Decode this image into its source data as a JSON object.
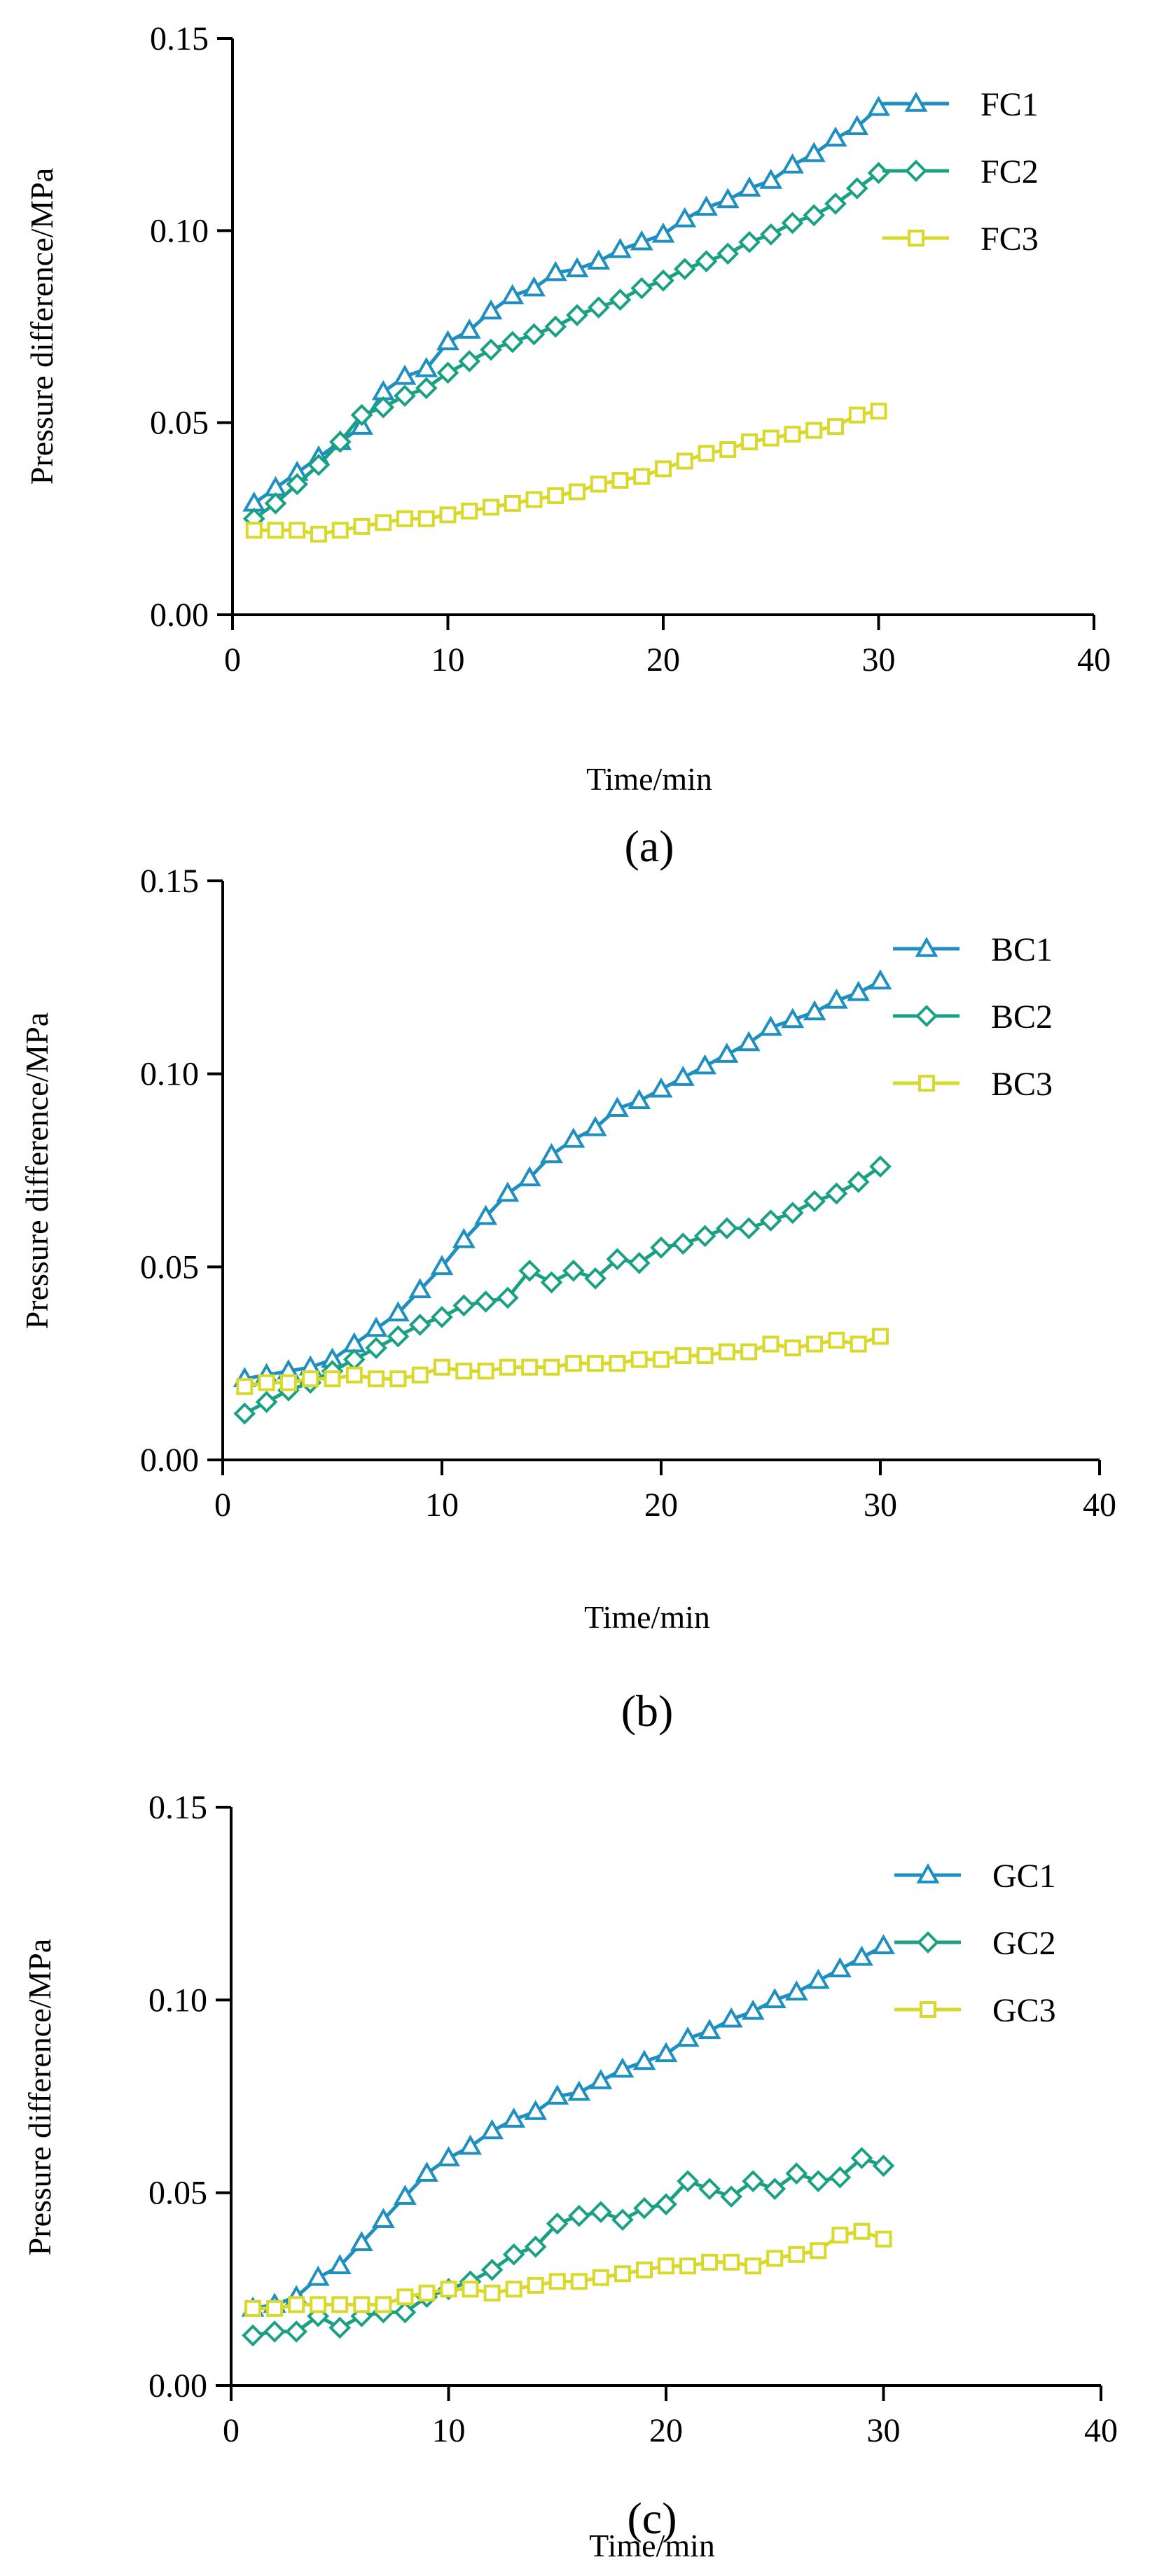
{
  "colors": {
    "series1": "#1f8fc0",
    "series2": "#1aa083",
    "series3": "#d9d92a"
  },
  "chart_data": [
    {
      "type": "line",
      "panel_label": "(a)",
      "xlabel": "Time/min",
      "ylabel": "Pressure difference/MPa",
      "xlim": [
        0,
        40
      ],
      "ylim": [
        0,
        0.15
      ],
      "xticks": [
        0,
        10,
        20,
        30,
        40
      ],
      "xtick_labels": [
        "0",
        "10",
        "20",
        "30",
        "40"
      ],
      "yticks": [
        0,
        0.05,
        0.1,
        0.15
      ],
      "ytick_labels": [
        "0.00",
        "0.05",
        "0.10",
        "0.15"
      ],
      "legend_position": "top-right",
      "series": [
        {
          "name": "FC1",
          "marker": "triangle",
          "color_key": "series1",
          "x": [
            1,
            2,
            3,
            4,
            5,
            6,
            7,
            8,
            9,
            10,
            11,
            12,
            13,
            14,
            15,
            16,
            17,
            18,
            19,
            20,
            21,
            22,
            23,
            24,
            25,
            26,
            27,
            28,
            29,
            30
          ],
          "values": [
            0.029,
            0.033,
            0.037,
            0.041,
            0.045,
            0.049,
            0.058,
            0.062,
            0.064,
            0.071,
            0.074,
            0.079,
            0.083,
            0.085,
            0.089,
            0.09,
            0.092,
            0.095,
            0.097,
            0.099,
            0.103,
            0.106,
            0.108,
            0.111,
            0.113,
            0.117,
            0.12,
            0.124,
            0.127,
            0.132
          ]
        },
        {
          "name": "FC2",
          "marker": "diamond",
          "color_key": "series2",
          "x": [
            1,
            2,
            3,
            4,
            5,
            6,
            7,
            8,
            9,
            10,
            11,
            12,
            13,
            14,
            15,
            16,
            17,
            18,
            19,
            20,
            21,
            22,
            23,
            24,
            25,
            26,
            27,
            28,
            29,
            30
          ],
          "values": [
            0.025,
            0.029,
            0.034,
            0.039,
            0.045,
            0.052,
            0.054,
            0.057,
            0.059,
            0.063,
            0.066,
            0.069,
            0.071,
            0.073,
            0.075,
            0.078,
            0.08,
            0.082,
            0.085,
            0.087,
            0.09,
            0.092,
            0.094,
            0.097,
            0.099,
            0.102,
            0.104,
            0.107,
            0.111,
            0.115
          ]
        },
        {
          "name": "FC3",
          "marker": "square",
          "color_key": "series3",
          "x": [
            1,
            2,
            3,
            4,
            5,
            6,
            7,
            8,
            9,
            10,
            11,
            12,
            13,
            14,
            15,
            16,
            17,
            18,
            19,
            20,
            21,
            22,
            23,
            24,
            25,
            26,
            27,
            28,
            29,
            30
          ],
          "values": [
            0.022,
            0.022,
            0.022,
            0.021,
            0.022,
            0.023,
            0.024,
            0.025,
            0.025,
            0.026,
            0.027,
            0.028,
            0.029,
            0.03,
            0.031,
            0.032,
            0.034,
            0.035,
            0.036,
            0.038,
            0.04,
            0.042,
            0.043,
            0.045,
            0.046,
            0.047,
            0.048,
            0.049,
            0.052,
            0.053
          ]
        }
      ]
    },
    {
      "type": "line",
      "panel_label": "(b)",
      "xlabel": "Time/min",
      "ylabel": "Pressure difference/MPa",
      "xlim": [
        0,
        40
      ],
      "ylim": [
        0,
        0.15
      ],
      "xticks": [
        0,
        10,
        20,
        30,
        40
      ],
      "xtick_labels": [
        "0",
        "10",
        "20",
        "30",
        "40"
      ],
      "yticks": [
        0,
        0.05,
        0.1,
        0.15
      ],
      "ytick_labels": [
        "0.00",
        "0.05",
        "0.10",
        "0.15"
      ],
      "legend_position": "top-right",
      "series": [
        {
          "name": "BC1",
          "marker": "triangle",
          "color_key": "series1",
          "x": [
            1,
            2,
            3,
            4,
            5,
            6,
            7,
            8,
            9,
            10,
            11,
            12,
            13,
            14,
            15,
            16,
            17,
            18,
            19,
            20,
            21,
            22,
            23,
            24,
            25,
            26,
            27,
            28,
            29,
            30
          ],
          "values": [
            0.021,
            0.022,
            0.023,
            0.024,
            0.026,
            0.03,
            0.034,
            0.038,
            0.044,
            0.05,
            0.057,
            0.063,
            0.069,
            0.073,
            0.079,
            0.083,
            0.086,
            0.091,
            0.093,
            0.096,
            0.099,
            0.102,
            0.105,
            0.108,
            0.112,
            0.114,
            0.116,
            0.119,
            0.121,
            0.124
          ]
        },
        {
          "name": "BC2",
          "marker": "diamond",
          "color_key": "series2",
          "x": [
            1,
            2,
            3,
            4,
            5,
            6,
            7,
            8,
            9,
            10,
            11,
            12,
            13,
            14,
            15,
            16,
            17,
            18,
            19,
            20,
            21,
            22,
            23,
            24,
            25,
            26,
            27,
            28,
            29,
            30
          ],
          "values": [
            0.012,
            0.015,
            0.018,
            0.02,
            0.023,
            0.026,
            0.029,
            0.032,
            0.035,
            0.037,
            0.04,
            0.041,
            0.042,
            0.049,
            0.046,
            0.049,
            0.047,
            0.052,
            0.051,
            0.055,
            0.056,
            0.058,
            0.06,
            0.06,
            0.062,
            0.064,
            0.067,
            0.069,
            0.072,
            0.076
          ]
        },
        {
          "name": "BC3",
          "marker": "square",
          "color_key": "series3",
          "x": [
            1,
            2,
            3,
            4,
            5,
            6,
            7,
            8,
            9,
            10,
            11,
            12,
            13,
            14,
            15,
            16,
            17,
            18,
            19,
            20,
            21,
            22,
            23,
            24,
            25,
            26,
            27,
            28,
            29,
            30
          ],
          "values": [
            0.019,
            0.02,
            0.02,
            0.021,
            0.021,
            0.022,
            0.021,
            0.021,
            0.022,
            0.024,
            0.023,
            0.023,
            0.024,
            0.024,
            0.024,
            0.025,
            0.025,
            0.025,
            0.026,
            0.026,
            0.027,
            0.027,
            0.028,
            0.028,
            0.03,
            0.029,
            0.03,
            0.031,
            0.03,
            0.032
          ]
        }
      ]
    },
    {
      "type": "line",
      "panel_label": "(c)",
      "xlabel": "Time/min",
      "ylabel": "Pressure difference/MPa",
      "xlim": [
        0,
        40
      ],
      "ylim": [
        0,
        0.15
      ],
      "xticks": [
        0,
        10,
        20,
        30,
        40
      ],
      "xtick_labels": [
        "0",
        "10",
        "20",
        "30",
        "40"
      ],
      "yticks": [
        0,
        0.05,
        0.1,
        0.15
      ],
      "ytick_labels": [
        "0.00",
        "0.05",
        "0.10",
        "0.15"
      ],
      "legend_position": "top-right",
      "series": [
        {
          "name": "GC1",
          "marker": "triangle",
          "color_key": "series1",
          "x": [
            1,
            2,
            3,
            4,
            5,
            6,
            7,
            8,
            9,
            10,
            11,
            12,
            13,
            14,
            15,
            16,
            17,
            18,
            19,
            20,
            21,
            22,
            23,
            24,
            25,
            26,
            27,
            28,
            29,
            30
          ],
          "values": [
            0.02,
            0.021,
            0.023,
            0.028,
            0.031,
            0.037,
            0.043,
            0.049,
            0.055,
            0.059,
            0.062,
            0.066,
            0.069,
            0.071,
            0.075,
            0.076,
            0.079,
            0.082,
            0.084,
            0.086,
            0.09,
            0.092,
            0.095,
            0.097,
            0.1,
            0.102,
            0.105,
            0.108,
            0.111,
            0.114
          ]
        },
        {
          "name": "GC2",
          "marker": "diamond",
          "color_key": "series2",
          "x": [
            1,
            2,
            3,
            4,
            5,
            6,
            7,
            8,
            9,
            10,
            11,
            12,
            13,
            14,
            15,
            16,
            17,
            18,
            19,
            20,
            21,
            22,
            23,
            24,
            25,
            26,
            27,
            28,
            29,
            30
          ],
          "values": [
            0.013,
            0.014,
            0.014,
            0.018,
            0.015,
            0.018,
            0.019,
            0.019,
            0.023,
            0.025,
            0.027,
            0.03,
            0.034,
            0.036,
            0.042,
            0.044,
            0.045,
            0.043,
            0.046,
            0.047,
            0.053,
            0.051,
            0.049,
            0.053,
            0.051,
            0.055,
            0.053,
            0.054,
            0.059,
            0.057
          ]
        },
        {
          "name": "GC3",
          "marker": "square",
          "color_key": "series3",
          "x": [
            1,
            2,
            3,
            4,
            5,
            6,
            7,
            8,
            9,
            10,
            11,
            12,
            13,
            14,
            15,
            16,
            17,
            18,
            19,
            20,
            21,
            22,
            23,
            24,
            25,
            26,
            27,
            28,
            29,
            30
          ],
          "values": [
            0.02,
            0.02,
            0.021,
            0.021,
            0.021,
            0.021,
            0.021,
            0.023,
            0.024,
            0.025,
            0.025,
            0.024,
            0.025,
            0.026,
            0.027,
            0.027,
            0.028,
            0.029,
            0.03,
            0.031,
            0.031,
            0.032,
            0.032,
            0.031,
            0.033,
            0.034,
            0.035,
            0.039,
            0.04,
            0.038
          ]
        }
      ]
    }
  ]
}
